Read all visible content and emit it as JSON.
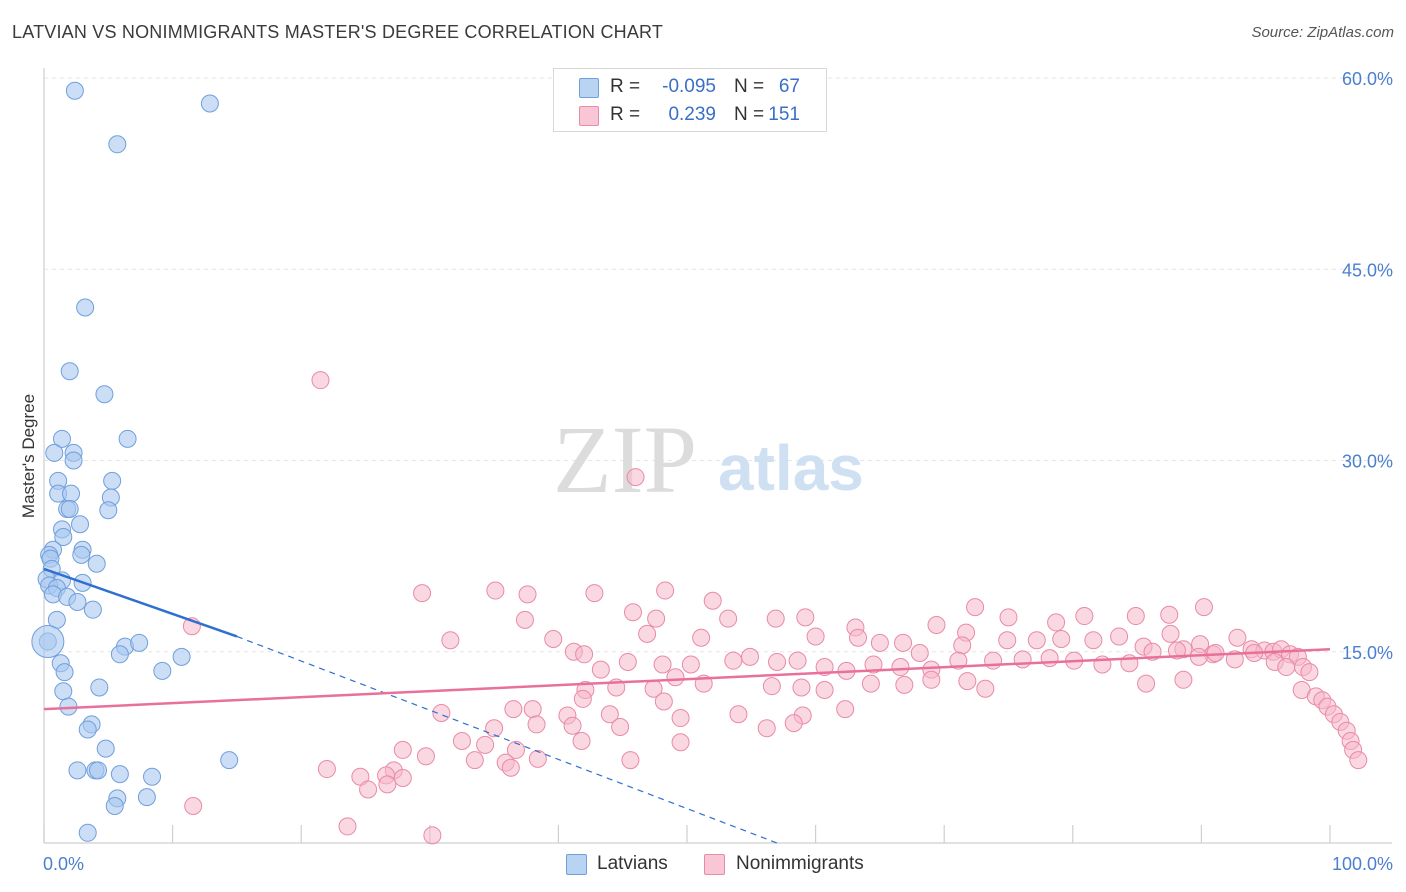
{
  "header": {
    "title": "LATVIAN VS NONIMMIGRANTS MASTER'S DEGREE CORRELATION CHART",
    "source": "Source: ZipAtlas.com"
  },
  "watermark": {
    "part1": "ZIP",
    "part2": "atlas"
  },
  "legend": {
    "rows": [
      {
        "r_label": "R =",
        "r_value": "-0.095",
        "n_label": "N =",
        "n_value": "67"
      },
      {
        "r_label": "R =",
        "r_value": "0.239",
        "n_label": "N =",
        "n_value": "151"
      }
    ]
  },
  "bottom_legend": {
    "series1": "Latvians",
    "series2": "Nonimmigrants"
  },
  "colors": {
    "blue_fill": "#a9c8f0",
    "blue_stroke": "#6f9fdc",
    "blue_line": "#2f6fd0",
    "pink_fill": "#f6b8cb",
    "pink_stroke": "#e98aa8",
    "pink_line": "#e8709a"
  },
  "chart_data": {
    "type": "scatter",
    "title": "LATVIAN VS NONIMMIGRANTS MASTER'S DEGREE CORRELATION CHART",
    "xlabel": "",
    "ylabel": "Master's Degree",
    "xlim": [
      0,
      100
    ],
    "ylim": [
      0,
      60
    ],
    "y_ticks": [
      15,
      30,
      45,
      60
    ],
    "y_tick_labels": [
      "15.0%",
      "30.0%",
      "45.0%",
      "60.0%"
    ],
    "x_tick_labels": {
      "min": "0.0%",
      "max": "100.0%"
    },
    "series": [
      {
        "name": "Latvians",
        "r": -0.095,
        "n": 67,
        "trend": {
          "x0": 0,
          "y0": 21.5,
          "x1": 15,
          "y1": 16.2,
          "dashed_to_x": 57,
          "dashed_to_y": 0
        },
        "points": [
          [
            2.4,
            59.0
          ],
          [
            12.9,
            58.0
          ],
          [
            5.7,
            54.8
          ],
          [
            3.2,
            42.0
          ],
          [
            2.0,
            37.0
          ],
          [
            4.7,
            35.2
          ],
          [
            6.5,
            31.7
          ],
          [
            1.4,
            31.7
          ],
          [
            0.8,
            30.6
          ],
          [
            2.3,
            30.6
          ],
          [
            2.3,
            30.0
          ],
          [
            5.3,
            28.4
          ],
          [
            1.1,
            28.4
          ],
          [
            1.1,
            27.4
          ],
          [
            2.1,
            27.4
          ],
          [
            5.2,
            27.1
          ],
          [
            1.8,
            26.2
          ],
          [
            2.0,
            26.2
          ],
          [
            5.0,
            26.1
          ],
          [
            2.8,
            25.0
          ],
          [
            1.4,
            24.6
          ],
          [
            1.5,
            24.0
          ],
          [
            0.7,
            23.0
          ],
          [
            3.0,
            23.0
          ],
          [
            0.4,
            22.6
          ],
          [
            0.5,
            22.3
          ],
          [
            2.9,
            22.6
          ],
          [
            4.1,
            21.9
          ],
          [
            0.6,
            21.5
          ],
          [
            0.2,
            20.7
          ],
          [
            1.4,
            20.6
          ],
          [
            3.0,
            20.4
          ],
          [
            0.4,
            20.2
          ],
          [
            1.0,
            20.0
          ],
          [
            0.7,
            19.5
          ],
          [
            1.8,
            19.3
          ],
          [
            2.6,
            18.9
          ],
          [
            3.8,
            18.3
          ],
          [
            1.0,
            17.5
          ],
          [
            0.3,
            15.8
          ],
          [
            6.3,
            15.4
          ],
          [
            7.4,
            15.7
          ],
          [
            5.9,
            14.8
          ],
          [
            10.7,
            14.6
          ],
          [
            1.3,
            14.1
          ],
          [
            9.2,
            13.5
          ],
          [
            1.6,
            13.4
          ],
          [
            4.3,
            12.2
          ],
          [
            1.5,
            11.9
          ],
          [
            1.9,
            10.7
          ],
          [
            3.7,
            9.3
          ],
          [
            3.4,
            8.9
          ],
          [
            4.8,
            7.4
          ],
          [
            14.4,
            6.5
          ],
          [
            2.6,
            5.7
          ],
          [
            4.0,
            5.7
          ],
          [
            4.2,
            5.7
          ],
          [
            5.9,
            5.4
          ],
          [
            8.4,
            5.2
          ],
          [
            5.7,
            3.5
          ],
          [
            8.0,
            3.6
          ],
          [
            5.5,
            2.9
          ],
          [
            3.4,
            0.8
          ]
        ]
      },
      {
        "name": "Nonimmigrants",
        "r": 0.239,
        "n": 151,
        "trend": {
          "x0": 0,
          "y0": 10.5,
          "x1": 100,
          "y1": 15.2
        },
        "points": [
          [
            21.5,
            36.3
          ],
          [
            46.0,
            28.7
          ],
          [
            11.5,
            17.0
          ],
          [
            29.4,
            19.6
          ],
          [
            35.1,
            19.8
          ],
          [
            37.6,
            19.5
          ],
          [
            42.8,
            19.6
          ],
          [
            48.3,
            19.8
          ],
          [
            52.0,
            19.0
          ],
          [
            45.8,
            18.1
          ],
          [
            47.6,
            17.6
          ],
          [
            37.4,
            17.5
          ],
          [
            53.2,
            17.6
          ],
          [
            56.9,
            17.6
          ],
          [
            59.2,
            17.7
          ],
          [
            63.1,
            16.9
          ],
          [
            69.4,
            17.1
          ],
          [
            71.7,
            16.5
          ],
          [
            75.0,
            17.7
          ],
          [
            78.7,
            17.3
          ],
          [
            80.9,
            17.8
          ],
          [
            84.9,
            17.8
          ],
          [
            87.5,
            17.9
          ],
          [
            90.2,
            18.5
          ],
          [
            72.4,
            18.5
          ],
          [
            31.6,
            15.9
          ],
          [
            39.6,
            16.0
          ],
          [
            46.9,
            16.4
          ],
          [
            51.1,
            16.1
          ],
          [
            60.0,
            16.2
          ],
          [
            63.3,
            16.1
          ],
          [
            65.0,
            15.7
          ],
          [
            66.8,
            15.7
          ],
          [
            68.1,
            14.9
          ],
          [
            71.4,
            15.5
          ],
          [
            74.9,
            15.9
          ],
          [
            77.2,
            15.9
          ],
          [
            79.1,
            16.0
          ],
          [
            81.6,
            15.9
          ],
          [
            83.6,
            16.2
          ],
          [
            85.5,
            15.4
          ],
          [
            87.6,
            16.4
          ],
          [
            88.6,
            15.2
          ],
          [
            89.9,
            15.6
          ],
          [
            90.9,
            14.8
          ],
          [
            92.8,
            16.1
          ],
          [
            93.9,
            15.2
          ],
          [
            94.9,
            15.1
          ],
          [
            95.6,
            15.0
          ],
          [
            96.2,
            15.2
          ],
          [
            96.9,
            14.8
          ],
          [
            97.5,
            14.6
          ],
          [
            41.2,
            15.0
          ],
          [
            42.0,
            14.8
          ],
          [
            43.3,
            13.6
          ],
          [
            45.4,
            14.2
          ],
          [
            48.1,
            14.0
          ],
          [
            50.3,
            14.0
          ],
          [
            53.6,
            14.3
          ],
          [
            54.9,
            14.6
          ],
          [
            57.0,
            14.2
          ],
          [
            58.6,
            14.3
          ],
          [
            60.7,
            13.8
          ],
          [
            62.4,
            13.5
          ],
          [
            64.5,
            14.0
          ],
          [
            66.6,
            13.8
          ],
          [
            69.0,
            13.6
          ],
          [
            71.1,
            14.3
          ],
          [
            73.8,
            14.3
          ],
          [
            76.1,
            14.4
          ],
          [
            78.2,
            14.5
          ],
          [
            80.1,
            14.3
          ],
          [
            82.3,
            14.0
          ],
          [
            84.4,
            14.1
          ],
          [
            86.2,
            15.0
          ],
          [
            88.1,
            15.1
          ],
          [
            89.8,
            14.6
          ],
          [
            91.1,
            14.9
          ],
          [
            92.6,
            14.4
          ],
          [
            94.1,
            14.9
          ],
          [
            95.7,
            14.2
          ],
          [
            96.6,
            13.8
          ],
          [
            97.9,
            13.8
          ],
          [
            98.4,
            13.4
          ],
          [
            42.1,
            12.0
          ],
          [
            44.5,
            12.2
          ],
          [
            47.4,
            12.1
          ],
          [
            49.1,
            13.0
          ],
          [
            51.3,
            12.5
          ],
          [
            56.6,
            12.3
          ],
          [
            58.9,
            12.2
          ],
          [
            60.7,
            12.0
          ],
          [
            64.3,
            12.5
          ],
          [
            66.9,
            12.4
          ],
          [
            69.0,
            12.8
          ],
          [
            71.8,
            12.7
          ],
          [
            73.2,
            12.1
          ],
          [
            85.7,
            12.5
          ],
          [
            88.6,
            12.8
          ],
          [
            97.8,
            12.0
          ],
          [
            98.9,
            11.5
          ],
          [
            99.4,
            11.2
          ],
          [
            99.8,
            10.7
          ],
          [
            100.3,
            10.1
          ],
          [
            100.8,
            9.5
          ],
          [
            101.3,
            8.8
          ],
          [
            101.6,
            8.0
          ],
          [
            101.8,
            7.3
          ],
          [
            102.2,
            6.5
          ],
          [
            41.9,
            11.3
          ],
          [
            48.2,
            11.1
          ],
          [
            38.0,
            10.5
          ],
          [
            40.7,
            10.0
          ],
          [
            30.9,
            10.2
          ],
          [
            36.5,
            10.5
          ],
          [
            44.0,
            10.1
          ],
          [
            49.5,
            9.8
          ],
          [
            54.0,
            10.1
          ],
          [
            59.0,
            10.0
          ],
          [
            62.3,
            10.5
          ],
          [
            56.2,
            9.0
          ],
          [
            58.3,
            9.4
          ],
          [
            38.3,
            9.3
          ],
          [
            41.1,
            9.2
          ],
          [
            44.8,
            9.1
          ],
          [
            35.0,
            9.0
          ],
          [
            32.5,
            8.0
          ],
          [
            34.3,
            7.7
          ],
          [
            36.7,
            7.3
          ],
          [
            41.8,
            8.0
          ],
          [
            49.5,
            7.9
          ],
          [
            27.9,
            7.3
          ],
          [
            29.7,
            6.8
          ],
          [
            33.5,
            6.5
          ],
          [
            38.4,
            6.6
          ],
          [
            45.6,
            6.5
          ],
          [
            35.9,
            6.3
          ],
          [
            36.3,
            5.9
          ],
          [
            22.0,
            5.8
          ],
          [
            27.2,
            5.7
          ],
          [
            24.6,
            5.2
          ],
          [
            26.6,
            5.3
          ],
          [
            27.9,
            5.1
          ],
          [
            26.7,
            4.6
          ],
          [
            25.2,
            4.2
          ],
          [
            11.6,
            2.9
          ],
          [
            23.6,
            1.3
          ],
          [
            30.2,
            0.6
          ]
        ]
      }
    ]
  }
}
